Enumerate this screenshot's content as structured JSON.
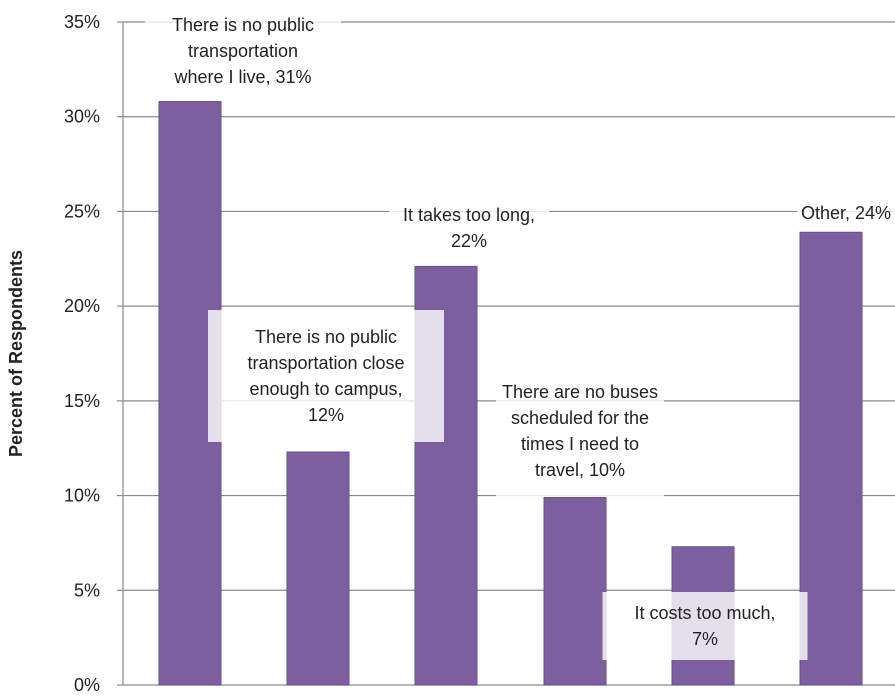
{
  "chart_data": {
    "type": "bar",
    "ylabel": "Percent of Respondents",
    "ylim": [
      0,
      35
    ],
    "yticks": [
      "0%",
      "5%",
      "10%",
      "15%",
      "20%",
      "25%",
      "30%",
      "35%"
    ],
    "ytick_values": [
      0,
      5,
      10,
      15,
      20,
      25,
      30,
      35
    ],
    "grid": true,
    "bar_color": "#7d5fa0",
    "categories": [
      "There is no public transportation where I live",
      "There is no public transportation close enough to campus",
      "It takes too long",
      "There are no buses scheduled for the times I need to travel",
      "It costs too much",
      "Other"
    ],
    "values": [
      30.8,
      12.3,
      22.1,
      9.9,
      7.3,
      23.9
    ],
    "data_labels": [
      [
        "There is no public",
        "transportation",
        "where I live, 31%"
      ],
      [
        "There is no public",
        "transportation close",
        "enough to campus,",
        "12%"
      ],
      [
        "It takes too long,",
        "22%"
      ],
      [
        "There are no buses",
        "scheduled for the",
        "times I need to",
        "travel, 10%"
      ],
      [
        "It costs too much,",
        "7%"
      ],
      [
        "Other, 24%"
      ]
    ]
  }
}
